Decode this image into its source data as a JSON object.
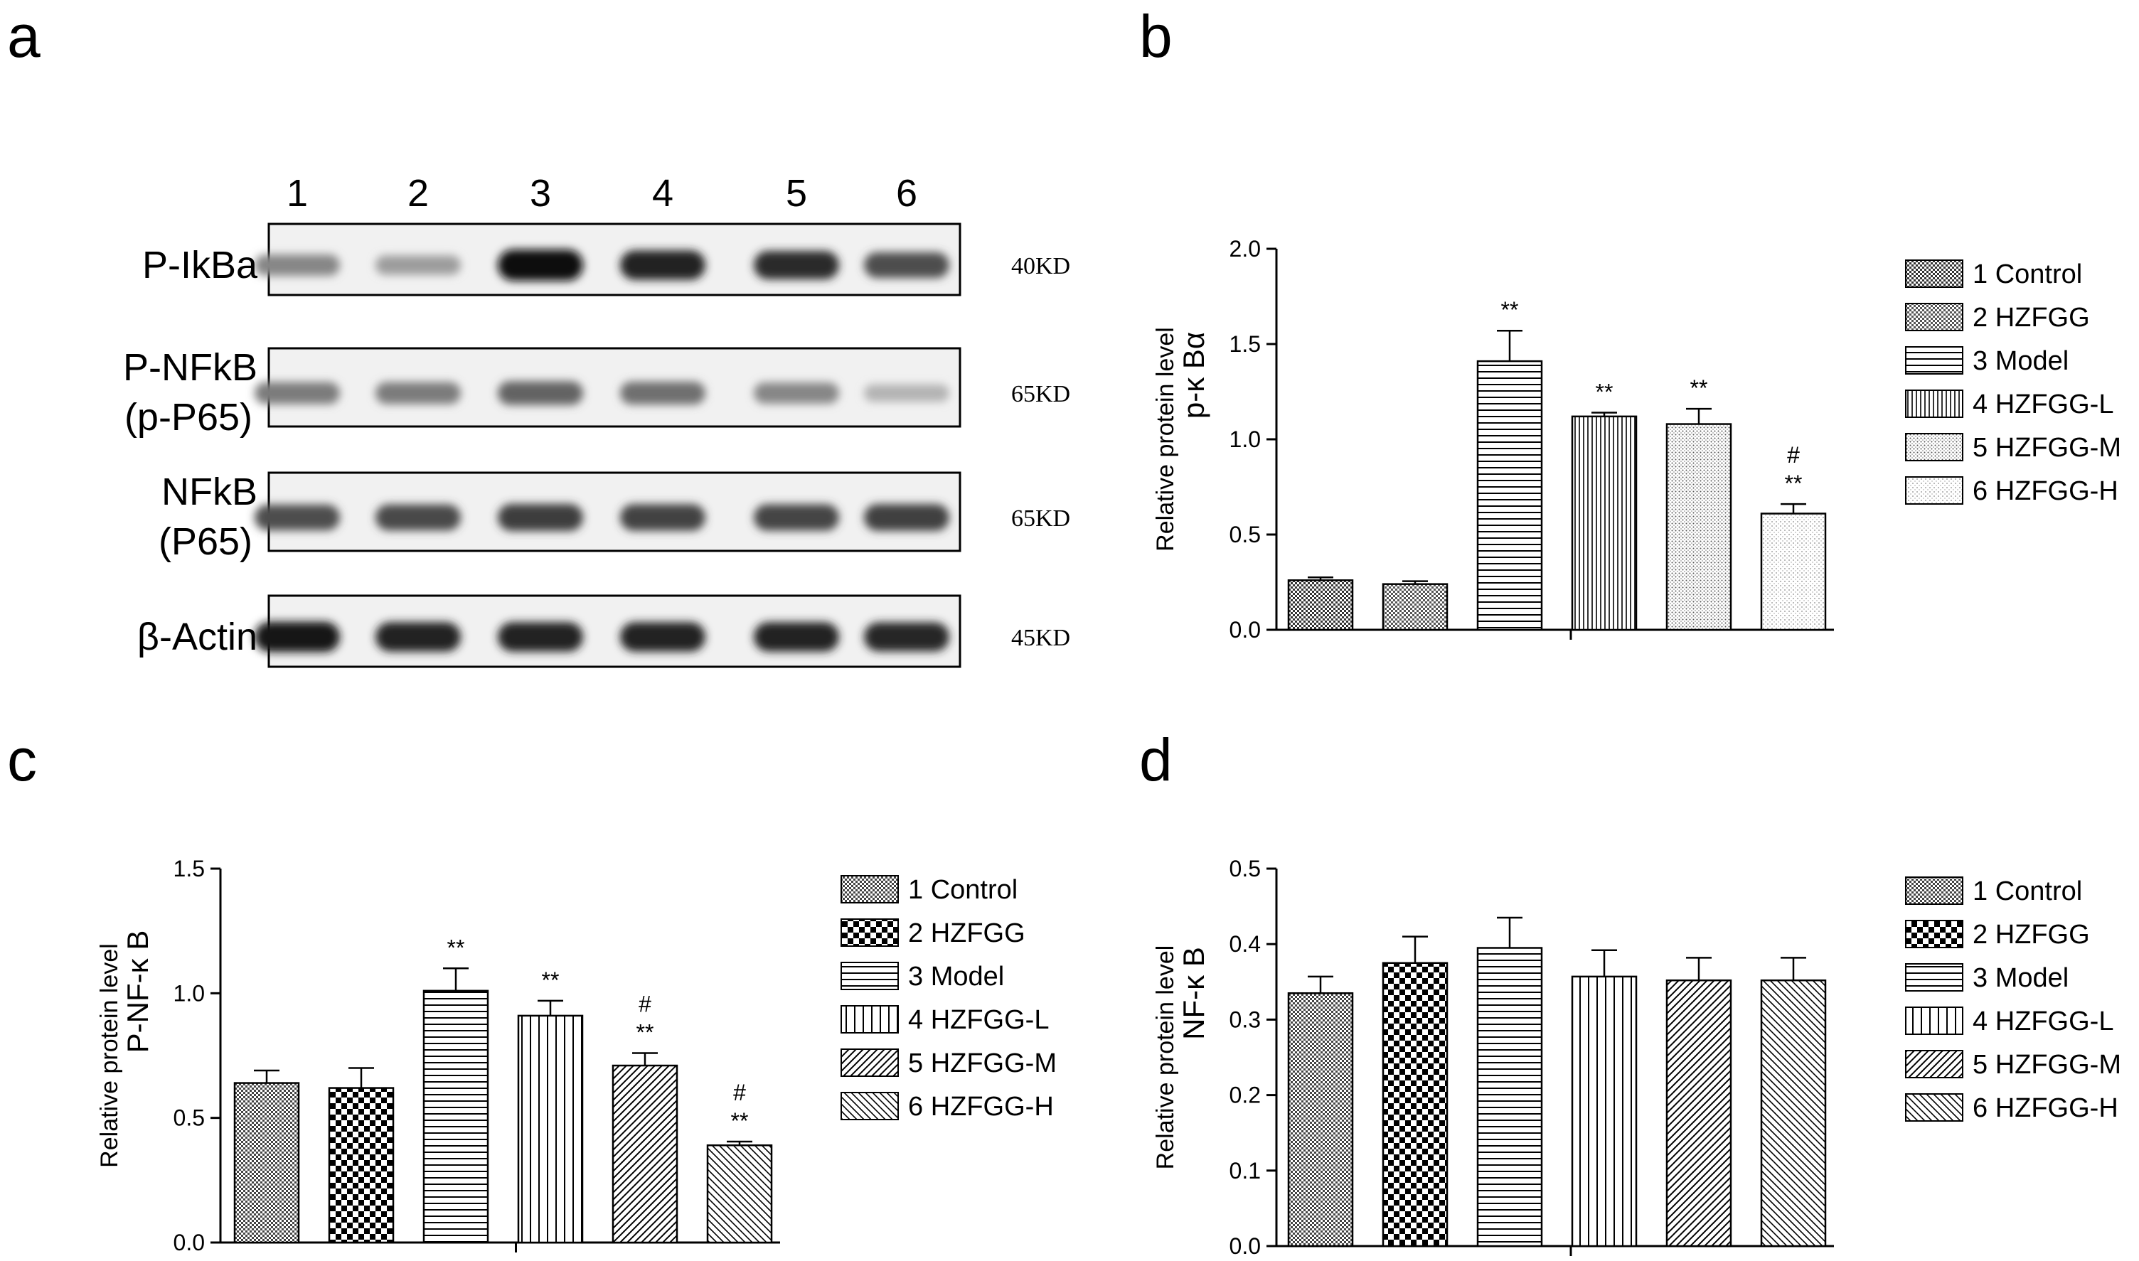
{
  "blot": {
    "panel_label": "a",
    "lanes": [
      "1",
      "2",
      "3",
      "4",
      "5",
      "6"
    ],
    "rows": [
      {
        "name": "P-IkBa",
        "name_line2": "",
        "kd": "40KD",
        "intensities": [
          0.45,
          0.35,
          1.0,
          0.9,
          0.85,
          0.7
        ]
      },
      {
        "name": "P-NFkB",
        "name_line2": "(p-P65)",
        "kd": "65KD",
        "intensities": [
          0.5,
          0.5,
          0.6,
          0.55,
          0.45,
          0.25
        ]
      },
      {
        "name": "NFkB",
        "name_line2": "(P65)",
        "kd": "65KD",
        "intensities": [
          0.7,
          0.72,
          0.78,
          0.75,
          0.74,
          0.76
        ]
      },
      {
        "name": "β-Actin",
        "name_line2": "",
        "kd": "45KD",
        "intensities": [
          0.95,
          0.9,
          0.9,
          0.9,
          0.9,
          0.88
        ]
      }
    ]
  },
  "legend_labels": [
    "1 Control",
    "2 HZFGG",
    "3 Model",
    "4 HZFGG-L",
    "5 HZFGG-M",
    "6 HZFGG-H"
  ],
  "chart_data": [
    {
      "panel": "b",
      "type": "bar",
      "ylabel": "Relative protein level",
      "ylabel2": "p-κ Bα",
      "ylim": [
        0,
        2.0
      ],
      "yticks": [
        "0.0",
        "0.5",
        "1.0",
        "1.5",
        "2.0"
      ],
      "categories": [
        "1 Control",
        "2 HZFGG",
        "3 Model",
        "4 HZFGG-L",
        "5 HZFGG-M",
        "6 HZFGG-H"
      ],
      "values": [
        0.26,
        0.24,
        1.41,
        1.12,
        1.08,
        0.61
      ],
      "errors": [
        0.015,
        0.015,
        0.16,
        0.02,
        0.08,
        0.05
      ],
      "sig_top": [
        "",
        "",
        "",
        "",
        "",
        "#"
      ],
      "sig_bottom": [
        "",
        "",
        "**",
        "**",
        "**",
        "**"
      ]
    },
    {
      "panel": "c",
      "type": "bar",
      "ylabel": "Relative protein level",
      "ylabel2": "P-NF-κ B",
      "ylim": [
        0,
        1.5
      ],
      "yticks": [
        "0.0",
        "0.5",
        "1.0",
        "1.5"
      ],
      "categories": [
        "1 Control",
        "2 HZFGG",
        "3 Model",
        "4 HZFGG-L",
        "5 HZFGG-M",
        "6 HZFGG-H"
      ],
      "values": [
        0.64,
        0.62,
        1.01,
        0.91,
        0.71,
        0.39
      ],
      "errors": [
        0.05,
        0.08,
        0.09,
        0.06,
        0.05,
        0.015
      ],
      "sig_top": [
        "",
        "",
        "",
        "",
        "#",
        "#"
      ],
      "sig_bottom": [
        "",
        "",
        "**",
        "**",
        "**",
        "**"
      ]
    },
    {
      "panel": "d",
      "type": "bar",
      "ylabel": "Relative protein level",
      "ylabel2": "NF-κ B",
      "ylim": [
        0,
        0.5
      ],
      "yticks": [
        "0.0",
        "0.1",
        "0.2",
        "0.3",
        "0.4",
        "0.5"
      ],
      "categories": [
        "1 Control",
        "2 HZFGG",
        "3 Model",
        "4 HZFGG-L",
        "5 HZFGG-M",
        "6 HZFGG-H"
      ],
      "values": [
        0.335,
        0.375,
        0.395,
        0.357,
        0.352,
        0.352
      ],
      "errors": [
        0.022,
        0.035,
        0.04,
        0.035,
        0.03,
        0.03
      ],
      "sig_top": [
        "",
        "",
        "",
        "",
        "",
        ""
      ],
      "sig_bottom": [
        "",
        "",
        "",
        "",
        "",
        ""
      ]
    }
  ]
}
